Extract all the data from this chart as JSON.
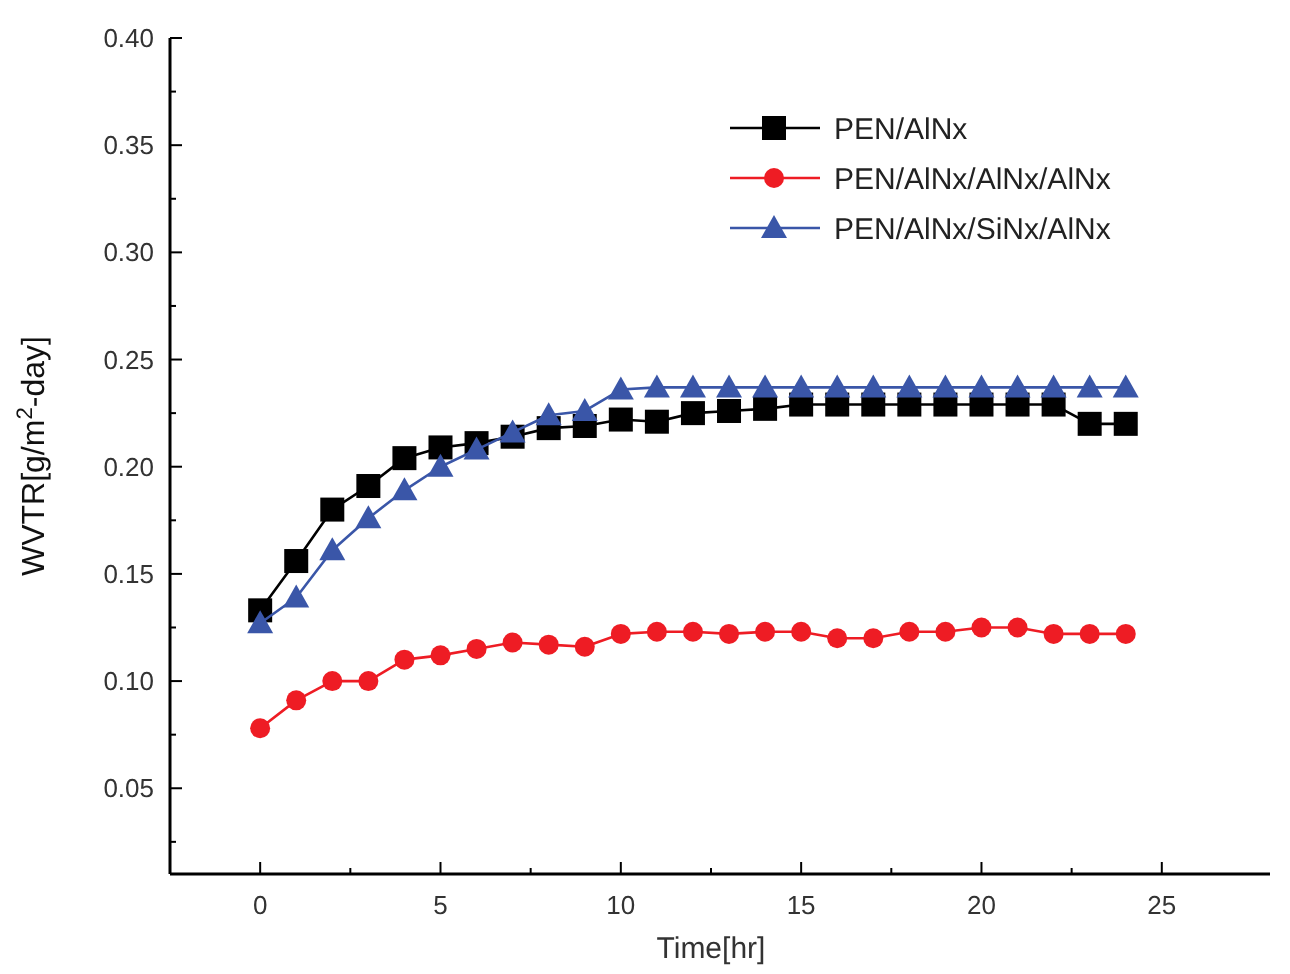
{
  "chart_data": {
    "type": "line",
    "xlabel": "Time[hr]",
    "ylabel": "WVTR[g/m$^{2}$-day]",
    "x": [
      0,
      1,
      2,
      3,
      4,
      5,
      6,
      7,
      8,
      9,
      10,
      11,
      12,
      13,
      14,
      15,
      16,
      17,
      18,
      19,
      20,
      21,
      22,
      23,
      24
    ],
    "series": [
      {
        "name": "PEN/AlNx",
        "color": "#000000",
        "marker": "square",
        "values": [
          0.133,
          0.156,
          0.18,
          0.191,
          0.204,
          0.209,
          0.211,
          0.214,
          0.218,
          0.219,
          0.222,
          0.221,
          0.225,
          0.226,
          0.227,
          0.229,
          0.229,
          0.229,
          0.229,
          0.229,
          0.229,
          0.229,
          0.229,
          0.22,
          0.22
        ]
      },
      {
        "name": "PEN/AlNx/AlNx/AlNx",
        "color": "#ee1c24",
        "marker": "circle",
        "values": [
          0.078,
          0.091,
          0.1,
          0.1,
          0.11,
          0.112,
          0.115,
          0.118,
          0.117,
          0.116,
          0.122,
          0.123,
          0.123,
          0.122,
          0.123,
          0.123,
          0.12,
          0.12,
          0.123,
          0.123,
          0.125,
          0.125,
          0.122,
          0.122,
          0.122
        ]
      },
      {
        "name": "PEN/AlNx/SiNx/AlNx",
        "color": "#3a56a8",
        "marker": "triangle",
        "values": [
          0.127,
          0.139,
          0.161,
          0.176,
          0.189,
          0.2,
          0.208,
          0.216,
          0.224,
          0.226,
          0.236,
          0.237,
          0.237,
          0.237,
          0.237,
          0.237,
          0.237,
          0.237,
          0.237,
          0.237,
          0.237,
          0.237,
          0.237,
          0.237,
          0.237
        ]
      }
    ],
    "xlim": [
      -2.5,
      28
    ],
    "xticks": [
      0,
      {
        "value": 2.5,
        "label": null
      },
      5,
      {
        "value": 7.5,
        "label": null
      },
      10,
      {
        "value": 12.5,
        "label": null
      },
      15,
      {
        "value": 17.5,
        "label": null
      },
      20,
      {
        "value": 22.5,
        "label": null
      },
      25
    ],
    "ylim": [
      0.01,
      0.4
    ],
    "yticks": [
      {
        "value": 0.025,
        "label": null
      },
      {
        "value": 0.05,
        "label": "0.05"
      },
      {
        "value": 0.075,
        "label": null
      },
      {
        "value": 0.1,
        "label": "0.10"
      },
      {
        "value": 0.125,
        "label": null
      },
      {
        "value": 0.15,
        "label": "0.15"
      },
      {
        "value": 0.175,
        "label": null
      },
      {
        "value": 0.2,
        "label": "0.20"
      },
      {
        "value": 0.225,
        "label": null
      },
      {
        "value": 0.25,
        "label": "0.25"
      },
      {
        "value": 0.275,
        "label": null
      },
      {
        "value": 0.3,
        "label": "0.30"
      },
      {
        "value": 0.325,
        "label": null
      },
      {
        "value": 0.35,
        "label": "0.35"
      },
      {
        "value": 0.375,
        "label": null
      },
      {
        "value": 0.4,
        "label": "0.40"
      }
    ],
    "grid": false,
    "legend": "top right",
    "line_style": "solid"
  }
}
